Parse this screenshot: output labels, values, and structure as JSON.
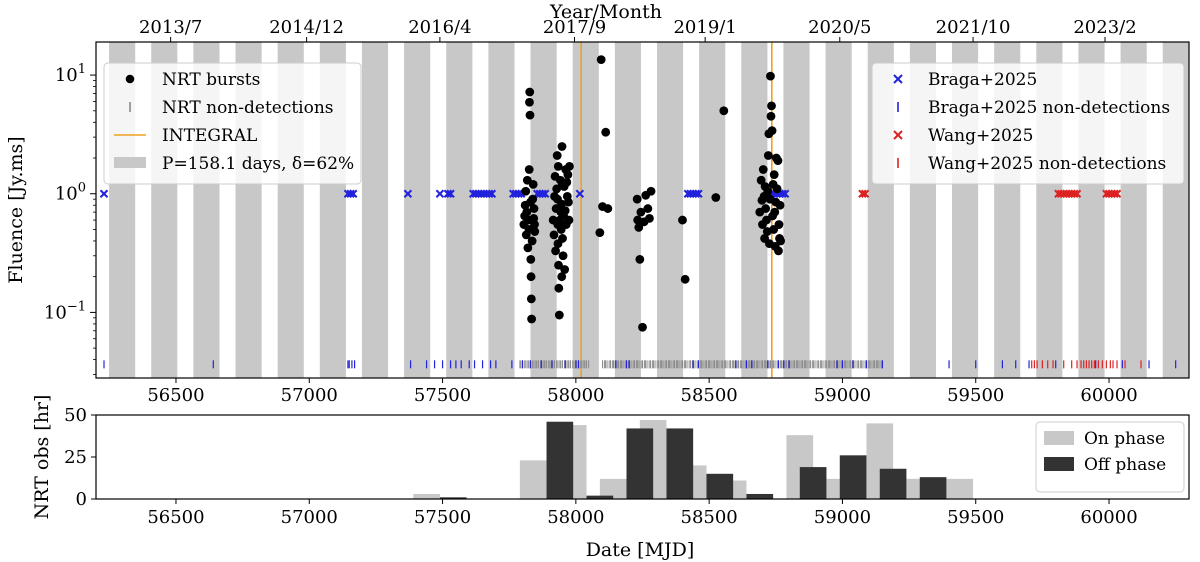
{
  "colors": {
    "band": "#c8c8c8",
    "integral": "#f0a020",
    "burst": "#000000",
    "nrt_nondet": "#8a8a8a",
    "braga": "#2222dd",
    "wang": "#dd2222",
    "on_phase": "#c8c8c8",
    "off_phase": "#333333"
  },
  "chart_data": [
    {
      "type": "scatter",
      "panel": "top",
      "ylabel": "Fluence [Jy.ms]",
      "top_axis_label": "Year/Month",
      "yscale": "log",
      "ylim": [
        0.028,
        19
      ],
      "xlim": [
        56200,
        60300
      ],
      "x_ticks": [
        56500,
        57000,
        57500,
        58000,
        58500,
        59000,
        59500,
        60000
      ],
      "y_ticks": [
        {
          "value": 0.1,
          "base": "10",
          "exp": "−1"
        },
        {
          "value": 1,
          "base": "10",
          "exp": "0"
        },
        {
          "value": 10,
          "base": "10",
          "exp": "1"
        }
      ],
      "top_ticks": [
        {
          "label": "2013/7",
          "mjd": 56480
        },
        {
          "label": "2014/12",
          "mjd": 56990
        },
        {
          "label": "2016/4",
          "mjd": 57490
        },
        {
          "label": "2017/9",
          "mjd": 57995
        },
        {
          "label": "2019/1",
          "mjd": 58485
        },
        {
          "label": "2020/5",
          "mjd": 58990
        },
        {
          "label": "2021/10",
          "mjd": 59490
        },
        {
          "label": "2023/2",
          "mjd": 59985
        }
      ],
      "period_days": 158.1,
      "duty_cycle": 0.62,
      "band_ref_start": 57830,
      "integral_lines": [
        58020,
        58735
      ],
      "legend_left": [
        {
          "label": "NRT bursts",
          "marker": "dot",
          "color": "#000000"
        },
        {
          "label": "NRT non-detections",
          "marker": "vline",
          "color": "#8a8a8a"
        },
        {
          "label": "INTEGRAL",
          "marker": "line",
          "color": "#f0a020"
        },
        {
          "label": "P=158.1 days, δ=62%",
          "marker": "patch",
          "color": "#c8c8c8"
        }
      ],
      "legend_right": [
        {
          "label": "Braga+2025",
          "marker": "x",
          "color": "#2222dd"
        },
        {
          "label": "Braga+2025 non-detections",
          "marker": "vline",
          "color": "#2222dd"
        },
        {
          "label": "Wang+2025",
          "marker": "x",
          "color": "#dd2222"
        },
        {
          "label": "Wang+2025 non-detections",
          "marker": "vline",
          "color": "#dd2222"
        }
      ],
      "series": {
        "nrt_bursts": [
          [
            57805,
            0.55
          ],
          [
            57808,
            0.65
          ],
          [
            57810,
            0.8
          ],
          [
            57812,
            1.05
          ],
          [
            57814,
            0.45
          ],
          [
            57816,
            0.7
          ],
          [
            57818,
            1.3
          ],
          [
            57820,
            0.35
          ],
          [
            57822,
            0.6
          ],
          [
            57824,
            0.5
          ],
          [
            57825,
            1.6
          ],
          [
            57826,
            5.9
          ],
          [
            57827,
            7.2
          ],
          [
            57828,
            4.6
          ],
          [
            57830,
            0.85
          ],
          [
            57831,
            0.28
          ],
          [
            57832,
            0.2
          ],
          [
            57833,
            0.13
          ],
          [
            57834,
            0.088
          ],
          [
            57836,
            0.4
          ],
          [
            57838,
            0.9
          ],
          [
            57840,
            1.2
          ],
          [
            57842,
            0.62
          ],
          [
            57843,
            0.75
          ],
          [
            57845,
            0.55
          ],
          [
            57846,
            0.48
          ],
          [
            57915,
            0.6
          ],
          [
            57918,
            0.45
          ],
          [
            57920,
            0.95
          ],
          [
            57922,
            1.4
          ],
          [
            57924,
            0.33
          ],
          [
            57926,
            0.75
          ],
          [
            57928,
            1.1
          ],
          [
            57930,
            2.1
          ],
          [
            57931,
            0.9
          ],
          [
            57932,
            0.55
          ],
          [
            57933,
            0.38
          ],
          [
            57934,
            1.7
          ],
          [
            57935,
            0.25
          ],
          [
            57936,
            0.16
          ],
          [
            57938,
            0.095
          ],
          [
            57940,
            0.6
          ],
          [
            57942,
            1.3
          ],
          [
            57944,
            0.7
          ],
          [
            57945,
            0.5
          ],
          [
            57946,
            0.82
          ],
          [
            57947,
            0.2
          ],
          [
            57948,
            2.5
          ],
          [
            57949,
            1.2
          ],
          [
            57950,
            0.42
          ],
          [
            57952,
            0.3
          ],
          [
            57954,
            0.65
          ],
          [
            57956,
            1.15
          ],
          [
            57958,
            0.23
          ],
          [
            57960,
            0.72
          ],
          [
            57962,
            1.6
          ],
          [
            57964,
            0.55
          ],
          [
            57966,
            1.25
          ],
          [
            57968,
            0.95
          ],
          [
            57970,
            1.45
          ],
          [
            57972,
            0.85
          ],
          [
            57974,
            0.6
          ],
          [
            57976,
            1.7
          ],
          [
            58090,
            0.47
          ],
          [
            58095,
            13.5
          ],
          [
            58100,
            0.78
          ],
          [
            58112,
            3.3
          ],
          [
            58120,
            0.75
          ],
          [
            58230,
            0.9
          ],
          [
            58232,
            0.6
          ],
          [
            58236,
            0.52
          ],
          [
            58240,
            0.28
          ],
          [
            58244,
            0.7
          ],
          [
            58250,
            0.075
          ],
          [
            58256,
            0.58
          ],
          [
            58262,
            0.97
          ],
          [
            58270,
            0.75
          ],
          [
            58276,
            0.62
          ],
          [
            58282,
            1.05
          ],
          [
            58400,
            0.6
          ],
          [
            58410,
            0.19
          ],
          [
            58525,
            0.93
          ],
          [
            58555,
            5.0
          ],
          [
            58690,
            0.7
          ],
          [
            58695,
            1.3
          ],
          [
            58698,
            0.88
          ],
          [
            58700,
            0.55
          ],
          [
            58703,
            1.6
          ],
          [
            58706,
            0.95
          ],
          [
            58708,
            0.42
          ],
          [
            58710,
            1.15
          ],
          [
            58712,
            0.75
          ],
          [
            58715,
            0.6
          ],
          [
            58718,
            0.48
          ],
          [
            58720,
            1.05
          ],
          [
            58722,
            2.1
          ],
          [
            58724,
            3.2
          ],
          [
            58726,
            0.38
          ],
          [
            58728,
            0.9
          ],
          [
            58730,
            9.8
          ],
          [
            58732,
            4.5
          ],
          [
            58734,
            5.5
          ],
          [
            58736,
            3.4
          ],
          [
            58738,
            0.65
          ],
          [
            58740,
            1.2
          ],
          [
            58742,
            0.5
          ],
          [
            58744,
            1.45
          ],
          [
            58746,
            0.7
          ],
          [
            58748,
            0.36
          ],
          [
            58750,
            0.85
          ],
          [
            58752,
            2.0
          ],
          [
            58755,
            1.1
          ],
          [
            58758,
            1.9
          ],
          [
            58760,
            0.33
          ],
          [
            58762,
            0.55
          ],
          [
            58764,
            0.42
          ],
          [
            58766,
            0.8
          ],
          [
            58768,
            0.4
          ]
        ],
        "braga_detections_x": [
          56230,
          57145,
          57155,
          57165,
          57370,
          57490,
          57520,
          57530,
          57615,
          57625,
          57635,
          57645,
          57655,
          57665,
          57675,
          57685,
          57765,
          57775,
          57785,
          57795,
          57855,
          57865,
          57875,
          57885,
          58015,
          58420,
          58430,
          58440,
          58450,
          58460,
          58735,
          58745,
          58755,
          58765,
          58775,
          58785
        ],
        "wang_detections_x": [
          59075,
          59085,
          59810,
          59820,
          59830,
          59840,
          59850,
          59860,
          59870,
          59880,
          59990,
          60000,
          60010,
          60020,
          60030
        ],
        "braga_nondet_x": [
          56230,
          56640,
          57145,
          57150,
          57160,
          57170,
          57380,
          57440,
          57470,
          57500,
          57530,
          57550,
          57570,
          57600,
          57620,
          57650,
          57680,
          57700,
          57760,
          57800,
          57830,
          57870,
          57910,
          57960,
          58000,
          58010,
          58150,
          58190,
          58200,
          58440,
          58460,
          58600,
          58640,
          58660,
          58720,
          58760,
          58780,
          58800,
          58980,
          59000,
          59040,
          59090,
          59150,
          59400,
          59500,
          59600,
          59650,
          59700,
          59800,
          59950,
          60050,
          60150,
          60250
        ],
        "wang_nondet_x": [
          59710,
          59720,
          59730,
          59750,
          59770,
          59790,
          59830,
          59860,
          59880,
          59895,
          59905,
          59915,
          59925,
          59935,
          59945,
          59960,
          59975,
          59990,
          60005,
          60015,
          60030,
          60060,
          60120
        ],
        "nrt_nondet_range": [
          57790,
          59150
        ]
      }
    },
    {
      "type": "bar",
      "panel": "bottom",
      "xlabel": "Date [MJD]",
      "ylabel": "NRT obs [hr]",
      "ylim": [
        0,
        50
      ],
      "y_ticks": [
        0,
        25,
        50
      ],
      "x_ticks": [
        56500,
        57000,
        57500,
        58000,
        58500,
        59000,
        59500,
        60000
      ],
      "bin_width": 100,
      "series": [
        {
          "name": "On phase",
          "color": "#c8c8c8",
          "bins": [
            [
              57390,
              3
            ],
            [
              57790,
              23
            ],
            [
              57940,
              44
            ],
            [
              58090,
              12
            ],
            [
              58240,
              47
            ],
            [
              58390,
              20
            ],
            [
              58540,
              11
            ],
            [
              58790,
              38
            ],
            [
              58940,
              12
            ],
            [
              59090,
              45
            ],
            [
              59240,
              12
            ],
            [
              59390,
              12
            ]
          ]
        },
        {
          "name": "Off phase",
          "color": "#333333",
          "bins": [
            [
              57490,
              1
            ],
            [
              57890,
              46
            ],
            [
              58040,
              2
            ],
            [
              58190,
              42
            ],
            [
              58340,
              42
            ],
            [
              58490,
              15
            ],
            [
              58640,
              3
            ],
            [
              58840,
              19
            ],
            [
              58990,
              26
            ],
            [
              59140,
              18
            ],
            [
              59290,
              13
            ]
          ]
        }
      ],
      "legend": [
        {
          "label": "On phase",
          "color": "#c8c8c8"
        },
        {
          "label": "Off phase",
          "color": "#333333"
        }
      ]
    }
  ]
}
